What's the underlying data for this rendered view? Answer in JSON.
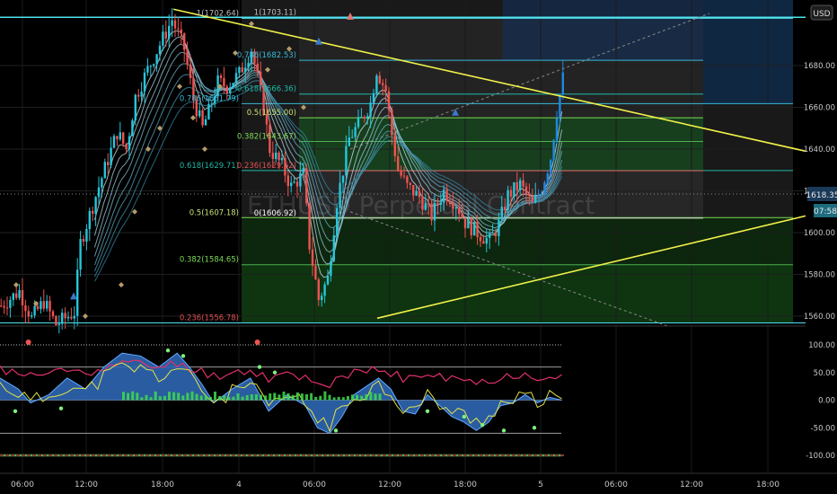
{
  "currency_badge": "USD",
  "watermark": "ETHUSD Perpetual Contract",
  "price_axis": {
    "ticks": [
      "1680.00",
      "1660.00",
      "1640.00",
      "1620.00",
      "1600.00",
      "1580.00",
      "1560.00"
    ],
    "current_price": "1618.35",
    "countdown": "07:58"
  },
  "time_axis": {
    "ticks": [
      "06:00",
      "12:00",
      "18:00",
      "4",
      "06:00",
      "12:00",
      "18:00",
      "5",
      "06:00",
      "12:00",
      "18:00"
    ]
  },
  "fib_labels": {
    "left_set": [
      "1(1702.64)",
      "0.786(1661.79)",
      "0.618(1629.71)",
      "0.5(1607.18)",
      "0.382(1584.65)",
      "0.236(1556.78)"
    ],
    "right_set": [
      "1(1703.11)",
      "0.786(1682.53)",
      "0.618(1666.36)",
      "0.5(1655.00)",
      "0.382(1643.67)",
      "0.236(1629.62)",
      "0(1606.92)"
    ]
  },
  "oscillator_axis": {
    "ticks": [
      "100.00",
      "50.00",
      "0.00",
      "-50.00",
      "-100.00"
    ]
  },
  "chart_data": {
    "type": "candlestick",
    "symbol": "ETHUSD Perpetual Contract",
    "currency": "USD",
    "price_range": [
      1552,
      1708
    ],
    "current_price": 1618.35,
    "fib_levels_A": [
      {
        "ratio": 1,
        "price": 1702.64
      },
      {
        "ratio": 0.786,
        "price": 1661.79
      },
      {
        "ratio": 0.618,
        "price": 1629.71
      },
      {
        "ratio": 0.5,
        "price": 1607.18
      },
      {
        "ratio": 0.382,
        "price": 1584.65
      },
      {
        "ratio": 0.236,
        "price": 1556.78
      }
    ],
    "fib_levels_B": [
      {
        "ratio": 1,
        "price": 1703.11
      },
      {
        "ratio": 0.786,
        "price": 1682.53
      },
      {
        "ratio": 0.618,
        "price": 1666.36
      },
      {
        "ratio": 0.5,
        "price": 1655.0
      },
      {
        "ratio": 0.382,
        "price": 1643.67
      },
      {
        "ratio": 0.236,
        "price": 1629.62
      },
      {
        "ratio": 0,
        "price": 1606.92
      }
    ],
    "price_path": [
      [
        0,
        1565
      ],
      [
        6,
        1572
      ],
      [
        10,
        1559
      ],
      [
        14,
        1567
      ],
      [
        18,
        1556
      ],
      [
        24,
        1562
      ],
      [
        26,
        1595
      ],
      [
        32,
        1622
      ],
      [
        38,
        1648
      ],
      [
        41,
        1640
      ],
      [
        44,
        1665
      ],
      [
        48,
        1678
      ],
      [
        52,
        1690
      ],
      [
        56,
        1702
      ],
      [
        60,
        1688
      ],
      [
        63,
        1664
      ],
      [
        66,
        1650
      ],
      [
        68,
        1658
      ],
      [
        71,
        1672
      ],
      [
        74,
        1670
      ],
      [
        78,
        1676
      ],
      [
        82,
        1688
      ],
      [
        86,
        1660
      ],
      [
        88,
        1640
      ],
      [
        92,
        1632
      ],
      [
        95,
        1622
      ],
      [
        99,
        1628
      ],
      [
        101,
        1594
      ],
      [
        104,
        1568
      ],
      [
        107,
        1578
      ],
      [
        110,
        1615
      ],
      [
        114,
        1645
      ],
      [
        118,
        1654
      ],
      [
        121,
        1662
      ],
      [
        123,
        1678
      ],
      [
        126,
        1668
      ],
      [
        128,
        1647
      ],
      [
        130,
        1630
      ],
      [
        133,
        1622
      ],
      [
        137,
        1617
      ],
      [
        141,
        1608
      ],
      [
        145,
        1620
      ],
      [
        149,
        1614
      ],
      [
        152,
        1605
      ],
      [
        156,
        1600
      ],
      [
        160,
        1596
      ],
      [
        163,
        1604
      ],
      [
        166,
        1618
      ],
      [
        170,
        1623
      ],
      [
        174,
        1613
      ],
      [
        177,
        1621
      ],
      [
        180,
        1636
      ],
      [
        182,
        1658
      ],
      [
        184,
        1674
      ]
    ],
    "oscillator": {
      "ylim": [
        -100,
        100
      ],
      "reference_lines": [
        100,
        60,
        0,
        -60,
        -100
      ],
      "wave_path": [
        [
          0,
          40
        ],
        [
          6,
          20
        ],
        [
          10,
          -5
        ],
        [
          16,
          10
        ],
        [
          22,
          40
        ],
        [
          28,
          20
        ],
        [
          34,
          60
        ],
        [
          40,
          85
        ],
        [
          46,
          80
        ],
        [
          52,
          60
        ],
        [
          58,
          85
        ],
        [
          62,
          60
        ],
        [
          66,
          30
        ],
        [
          70,
          -5
        ],
        [
          76,
          20
        ],
        [
          82,
          40
        ],
        [
          88,
          -20
        ],
        [
          94,
          10
        ],
        [
          100,
          -10
        ],
        [
          104,
          -50
        ],
        [
          108,
          -60
        ],
        [
          112,
          -30
        ],
        [
          116,
          10
        ],
        [
          120,
          25
        ],
        [
          124,
          40
        ],
        [
          128,
          20
        ],
        [
          132,
          -20
        ],
        [
          136,
          -25
        ],
        [
          140,
          10
        ],
        [
          144,
          -10
        ],
        [
          148,
          -30
        ],
        [
          152,
          -40
        ],
        [
          156,
          -55
        ],
        [
          160,
          -40
        ],
        [
          164,
          -10
        ],
        [
          168,
          -5
        ],
        [
          172,
          10
        ],
        [
          176,
          -5
        ],
        [
          180,
          5
        ],
        [
          184,
          0
        ]
      ]
    }
  }
}
